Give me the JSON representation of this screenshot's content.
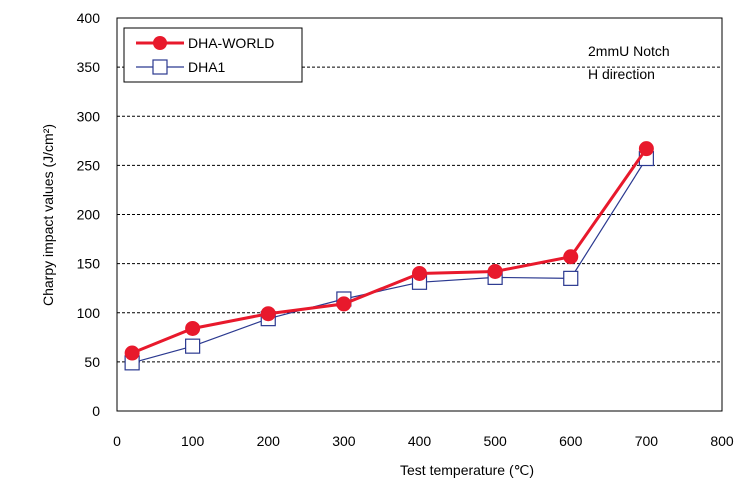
{
  "chart_data": {
    "type": "line",
    "xlabel": "Test temperature (℃)",
    "ylabel": "Charpy impact values (J/cm²)",
    "xlim": [
      0,
      800
    ],
    "ylim": [
      0,
      400
    ],
    "x_ticks": [
      "0",
      "100",
      "200",
      "300",
      "400",
      "500",
      "600",
      "700",
      "800"
    ],
    "y_ticks": [
      "0",
      "50",
      "100",
      "150",
      "200",
      "250",
      "300",
      "350",
      "400"
    ],
    "grid": "dashed",
    "legend_position": "top-left",
    "annotations": [
      "2mmU Notch",
      "H direction"
    ],
    "series": [
      {
        "name": "DHA-WORLD",
        "color": "#e8192c",
        "marker": "filled-circle",
        "x": [
          20,
          100,
          200,
          300,
          400,
          500,
          600,
          700
        ],
        "y": [
          59,
          84,
          99,
          109,
          140,
          142,
          157,
          267
        ]
      },
      {
        "name": "DHA1",
        "color": "#2b3990",
        "marker": "open-square",
        "x": [
          20,
          100,
          200,
          300,
          400,
          500,
          600,
          700
        ],
        "y": [
          49,
          66,
          94,
          114,
          131,
          136,
          135,
          257
        ]
      }
    ]
  }
}
